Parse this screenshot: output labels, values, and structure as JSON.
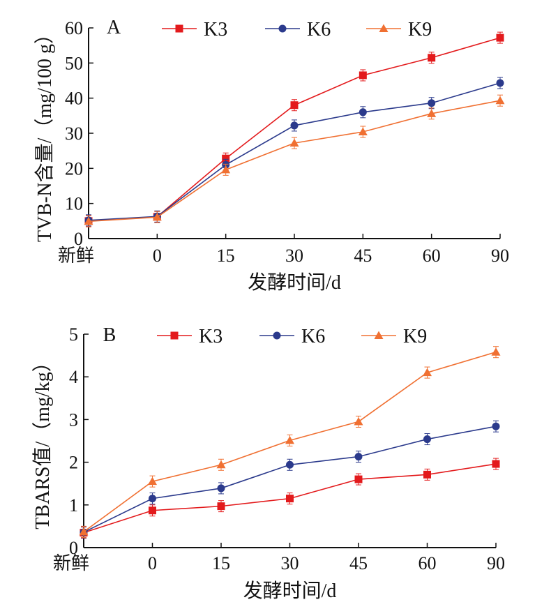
{
  "colors": {
    "K3": "#e31a1c",
    "K6": "#2b3a8c",
    "K9": "#f07032",
    "axis": "#111111"
  },
  "chart_data": [
    {
      "type": "line",
      "panel_label": "A",
      "categories": [
        "新鲜",
        "0",
        "15",
        "30",
        "45",
        "60",
        "90"
      ],
      "xlabel": "发酵时间/d",
      "ylabel": "TVB-N含量/（mg/100 g）",
      "ylim": [
        0,
        60
      ],
      "yticks": [
        0,
        10,
        20,
        30,
        40,
        50,
        60
      ],
      "legend_position": "top",
      "series": [
        {
          "name": "K3",
          "marker": "square",
          "values": [
            5.0,
            6.2,
            22.8,
            38.0,
            46.5,
            51.5,
            57.2
          ]
        },
        {
          "name": "K6",
          "marker": "circle",
          "values": [
            5.2,
            6.3,
            21.0,
            32.2,
            36.0,
            38.6,
            44.3
          ]
        },
        {
          "name": "K9",
          "marker": "triangle",
          "values": [
            4.9,
            6.1,
            19.6,
            27.2,
            30.4,
            35.6,
            39.3
          ]
        }
      ]
    },
    {
      "type": "line",
      "panel_label": "B",
      "categories": [
        "新鲜",
        "0",
        "15",
        "30",
        "45",
        "60",
        "90"
      ],
      "xlabel": "发酵时间/d",
      "ylabel": "TBARS值/（mg/kg）",
      "ylim": [
        0,
        5
      ],
      "yticks": [
        0,
        1,
        2,
        3,
        4,
        5
      ],
      "legend_position": "top",
      "series": [
        {
          "name": "K3",
          "marker": "square",
          "values": [
            0.35,
            0.87,
            0.97,
            1.15,
            1.6,
            1.71,
            1.96
          ]
        },
        {
          "name": "K6",
          "marker": "circle",
          "values": [
            0.36,
            1.15,
            1.39,
            1.94,
            2.13,
            2.54,
            2.84
          ]
        },
        {
          "name": "K9",
          "marker": "triangle",
          "values": [
            0.37,
            1.55,
            1.94,
            2.51,
            2.95,
            4.1,
            4.58
          ]
        }
      ]
    }
  ]
}
